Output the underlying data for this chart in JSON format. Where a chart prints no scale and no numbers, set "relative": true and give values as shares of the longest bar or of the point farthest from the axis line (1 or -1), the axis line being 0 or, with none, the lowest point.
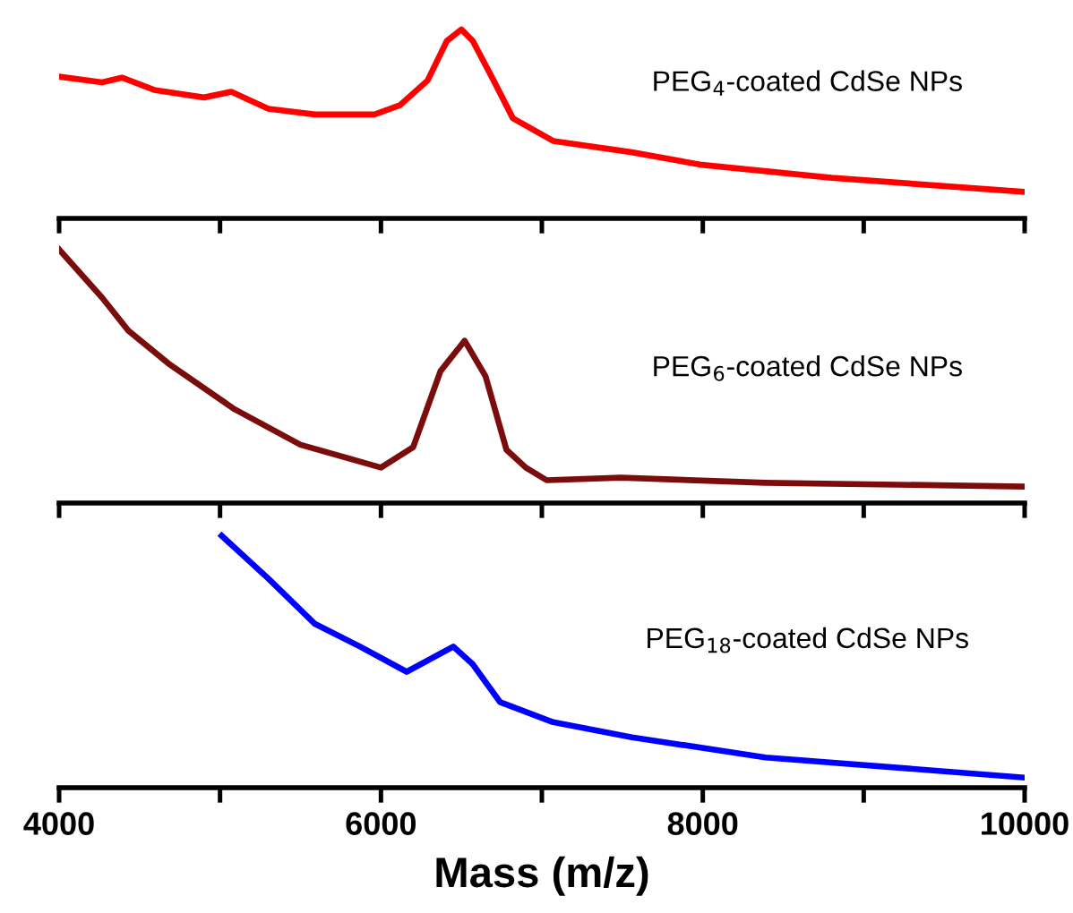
{
  "chart_data": [
    {
      "type": "line",
      "relative": true,
      "tick_labels": false,
      "xlim": [
        4000,
        10000
      ],
      "xticks": [
        {
          "value": 4000,
          "label": null
        },
        {
          "value": 5000,
          "label": null
        },
        {
          "value": 6000,
          "label": null
        },
        {
          "value": 7000,
          "label": null
        },
        {
          "value": 8000,
          "label": null
        },
        {
          "value": 9000,
          "label": null
        },
        {
          "value": 10000,
          "label": null
        }
      ],
      "annotations": [
        "PEG$_{4}$-coated CdSe NPs"
      ],
      "series": [
        {
          "color": "#ff0000",
          "x": [
            4000,
            4267,
            4390,
            4590,
            4900,
            5070,
            5300,
            5590,
            5960,
            6120,
            6290,
            6410,
            6500,
            6570,
            6700,
            6820,
            7070,
            7560,
            7980,
            8800,
            10000
          ],
          "values": [
            0.75,
            0.72,
            0.745,
            0.68,
            0.64,
            0.67,
            0.58,
            0.55,
            0.55,
            0.6,
            0.73,
            0.94,
            1.0,
            0.94,
            0.73,
            0.53,
            0.41,
            0.35,
            0.285,
            0.215,
            0.14
          ]
        }
      ]
    },
    {
      "type": "line",
      "relative": true,
      "tick_labels": false,
      "xlim": [
        4000,
        10000
      ],
      "xticks": [
        {
          "value": 4000,
          "label": null
        },
        {
          "value": 5000,
          "label": null
        },
        {
          "value": 6000,
          "label": null
        },
        {
          "value": 7000,
          "label": null
        },
        {
          "value": 8000,
          "label": null
        },
        {
          "value": 9000,
          "label": null
        },
        {
          "value": 10000,
          "label": null
        }
      ],
      "annotations": [
        "PEG$_{6}$-coated CdSe NPs"
      ],
      "series": [
        {
          "color": "#7b0c0c",
          "x": [
            4000,
            4267,
            4430,
            4680,
            5090,
            5500,
            6000,
            6200,
            6370,
            6520,
            6650,
            6780,
            6900,
            7030,
            7490,
            8390,
            10000
          ],
          "values": [
            1.0,
            0.81,
            0.68,
            0.55,
            0.37,
            0.23,
            0.14,
            0.22,
            0.52,
            0.64,
            0.5,
            0.21,
            0.14,
            0.09,
            0.1,
            0.08,
            0.065
          ]
        }
      ]
    },
    {
      "type": "line",
      "relative": true,
      "tick_labels": "x",
      "xlim": [
        4000,
        10000
      ],
      "xticks": [
        4000,
        {
          "value": 5000,
          "label": null
        },
        6000,
        {
          "value": 7000,
          "label": null
        },
        8000,
        {
          "value": 9000,
          "label": null
        },
        10000
      ],
      "xlabel": "Mass (m/z)",
      "annotations": [
        "PEG$_{18}$-coated CdSe NPs"
      ],
      "series": [
        {
          "color": "#0000ff",
          "x": [
            5010,
            5300,
            5590,
            5870,
            6160,
            6450,
            6570,
            6740,
            7070,
            7560,
            8390,
            10000
          ],
          "values": [
            1.0,
            0.83,
            0.65,
            0.56,
            0.46,
            0.56,
            0.49,
            0.34,
            0.26,
            0.2,
            0.12,
            0.04
          ]
        }
      ]
    }
  ]
}
